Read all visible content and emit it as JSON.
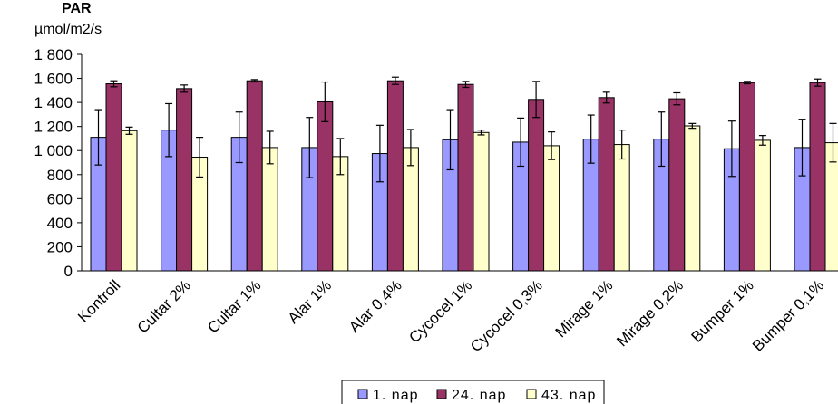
{
  "chart_data": {
    "type": "bar",
    "title": "PAR",
    "ylabel": "µmol/m2/s",
    "xlabel": "",
    "ylim": [
      0,
      1800
    ],
    "yticks": [
      0,
      200,
      400,
      600,
      800,
      1000,
      1200,
      1400,
      1600,
      1800
    ],
    "ytick_labels": [
      "0",
      "200",
      "400",
      "600",
      "800",
      "1 000",
      "1 200",
      "1 400",
      "1 600",
      "1 800"
    ],
    "grid": false,
    "legend_position": "bottom",
    "categories": [
      "Kontroll",
      "Cultar 2%",
      "Cultar 1%",
      "Alar 1%",
      "Alar 0,4%",
      "Cycocel 1%",
      "Cycocel 0,3%",
      "Mirage 1%",
      "Mirage 0,2%",
      "Bumper 1%",
      "Bumper 0,1%"
    ],
    "series": [
      {
        "name": "1. nap",
        "color": "#9999ff",
        "values": [
          1110,
          1170,
          1110,
          1025,
          975,
          1090,
          1070,
          1095,
          1095,
          1015,
          1025
        ],
        "errors": [
          230,
          220,
          210,
          250,
          235,
          250,
          200,
          200,
          225,
          230,
          235
        ]
      },
      {
        "name": "24. nap",
        "color": "#993366",
        "values": [
          1555,
          1515,
          1580,
          1405,
          1580,
          1550,
          1425,
          1440,
          1430,
          1565,
          1565
        ],
        "errors": [
          25,
          30,
          10,
          165,
          30,
          25,
          150,
          45,
          50,
          10,
          30
        ]
      },
      {
        "name": "43. nap",
        "color": "#ffffcc",
        "values": [
          1165,
          945,
          1025,
          950,
          1025,
          1150,
          1040,
          1050,
          1205,
          1085,
          1065
        ],
        "errors": [
          30,
          165,
          135,
          150,
          150,
          20,
          115,
          120,
          20,
          40,
          160
        ]
      }
    ]
  }
}
